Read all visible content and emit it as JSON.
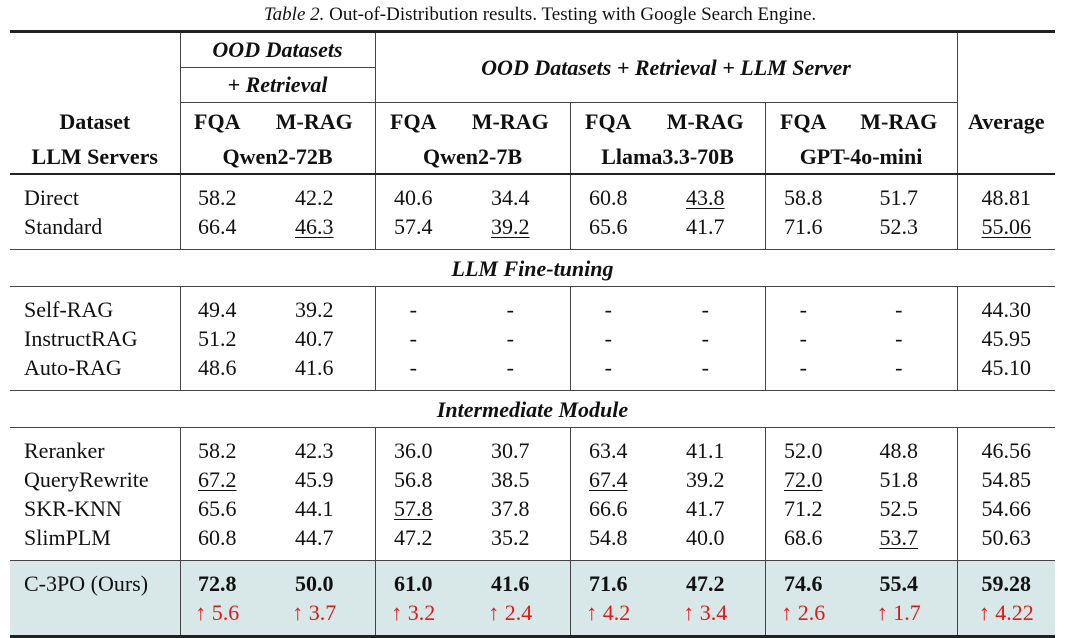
{
  "caption": {
    "label": "Table 2.",
    "text": " Out-of-Distribution results. Testing with Google Search Engine."
  },
  "header": {
    "group1": [
      "OOD Datasets",
      "+ Retrieval"
    ],
    "group2": "OOD Datasets + Retrieval + LLM Server",
    "row_label": [
      "Dataset",
      "LLM Servers"
    ],
    "metrics": [
      "FQA",
      "M-RAG"
    ],
    "servers": [
      "Qwen2-72B",
      "Qwen2-7B",
      "Llama3.3-70B",
      "GPT-4o-mini"
    ],
    "average": "Average"
  },
  "sections": [
    {
      "title": "",
      "rows": [
        {
          "name": "Direct",
          "cells": [
            [
              "58.2",
              0
            ],
            [
              "42.2",
              0
            ],
            [
              "40.6",
              0
            ],
            [
              "34.4",
              0
            ],
            [
              "60.8",
              0
            ],
            [
              "43.8",
              1
            ],
            [
              "58.8",
              0
            ],
            [
              "51.7",
              0
            ],
            [
              "48.81",
              0
            ]
          ]
        },
        {
          "name": "Standard",
          "cells": [
            [
              "66.4",
              0
            ],
            [
              "46.3",
              1
            ],
            [
              "57.4",
              0
            ],
            [
              "39.2",
              1
            ],
            [
              "65.6",
              0
            ],
            [
              "41.7",
              0
            ],
            [
              "71.6",
              0
            ],
            [
              "52.3",
              0
            ],
            [
              "55.06",
              1
            ]
          ]
        }
      ]
    },
    {
      "title": "LLM Fine-tuning",
      "rows": [
        {
          "name": "Self-RAG",
          "cells": [
            [
              "49.4",
              0
            ],
            [
              "39.2",
              0
            ],
            [
              "-",
              0
            ],
            [
              "-",
              0
            ],
            [
              "-",
              0
            ],
            [
              "-",
              0
            ],
            [
              "-",
              0
            ],
            [
              "-",
              0
            ],
            [
              "44.30",
              0
            ]
          ]
        },
        {
          "name": "InstructRAG",
          "cells": [
            [
              "51.2",
              0
            ],
            [
              "40.7",
              0
            ],
            [
              "-",
              0
            ],
            [
              "-",
              0
            ],
            [
              "-",
              0
            ],
            [
              "-",
              0
            ],
            [
              "-",
              0
            ],
            [
              "-",
              0
            ],
            [
              "45.95",
              0
            ]
          ]
        },
        {
          "name": "Auto-RAG",
          "cells": [
            [
              "48.6",
              0
            ],
            [
              "41.6",
              0
            ],
            [
              "-",
              0
            ],
            [
              "-",
              0
            ],
            [
              "-",
              0
            ],
            [
              "-",
              0
            ],
            [
              "-",
              0
            ],
            [
              "-",
              0
            ],
            [
              "45.10",
              0
            ]
          ]
        }
      ]
    },
    {
      "title": "Intermediate Module",
      "rows": [
        {
          "name": "Reranker",
          "cells": [
            [
              "58.2",
              0
            ],
            [
              "42.3",
              0
            ],
            [
              "36.0",
              0
            ],
            [
              "30.7",
              0
            ],
            [
              "63.4",
              0
            ],
            [
              "41.1",
              0
            ],
            [
              "52.0",
              0
            ],
            [
              "48.8",
              0
            ],
            [
              "46.56",
              0
            ]
          ]
        },
        {
          "name": "QueryRewrite",
          "cells": [
            [
              "67.2",
              1
            ],
            [
              "45.9",
              0
            ],
            [
              "56.8",
              0
            ],
            [
              "38.5",
              0
            ],
            [
              "67.4",
              1
            ],
            [
              "39.2",
              0
            ],
            [
              "72.0",
              1
            ],
            [
              "51.8",
              0
            ],
            [
              "54.85",
              0
            ]
          ]
        },
        {
          "name": "SKR-KNN",
          "cells": [
            [
              "65.6",
              0
            ],
            [
              "44.1",
              0
            ],
            [
              "57.8",
              1
            ],
            [
              "37.8",
              0
            ],
            [
              "66.6",
              0
            ],
            [
              "41.7",
              0
            ],
            [
              "71.2",
              0
            ],
            [
              "52.5",
              0
            ],
            [
              "54.66",
              0
            ]
          ]
        },
        {
          "name": "SlimPLM",
          "cells": [
            [
              "60.8",
              0
            ],
            [
              "44.7",
              0
            ],
            [
              "47.2",
              0
            ],
            [
              "35.2",
              0
            ],
            [
              "54.8",
              0
            ],
            [
              "40.0",
              0
            ],
            [
              "68.6",
              0
            ],
            [
              "53.7",
              1
            ],
            [
              "50.63",
              0
            ]
          ]
        }
      ]
    }
  ],
  "ours": {
    "name": "C-3PO (Ours)",
    "values": [
      "72.8",
      "50.0",
      "61.0",
      "41.6",
      "71.6",
      "47.2",
      "74.6",
      "55.4",
      "59.28"
    ],
    "gains": [
      "↑ 5.6",
      "↑ 3.7",
      "↑ 3.2",
      "↑ 2.4",
      "↑ 4.2",
      "↑ 3.4",
      "↑ 2.6",
      "↑ 1.7",
      "↑ 4.22"
    ]
  },
  "colors": {
    "highlight": "#d8e8e9",
    "gain": "#e01818"
  }
}
